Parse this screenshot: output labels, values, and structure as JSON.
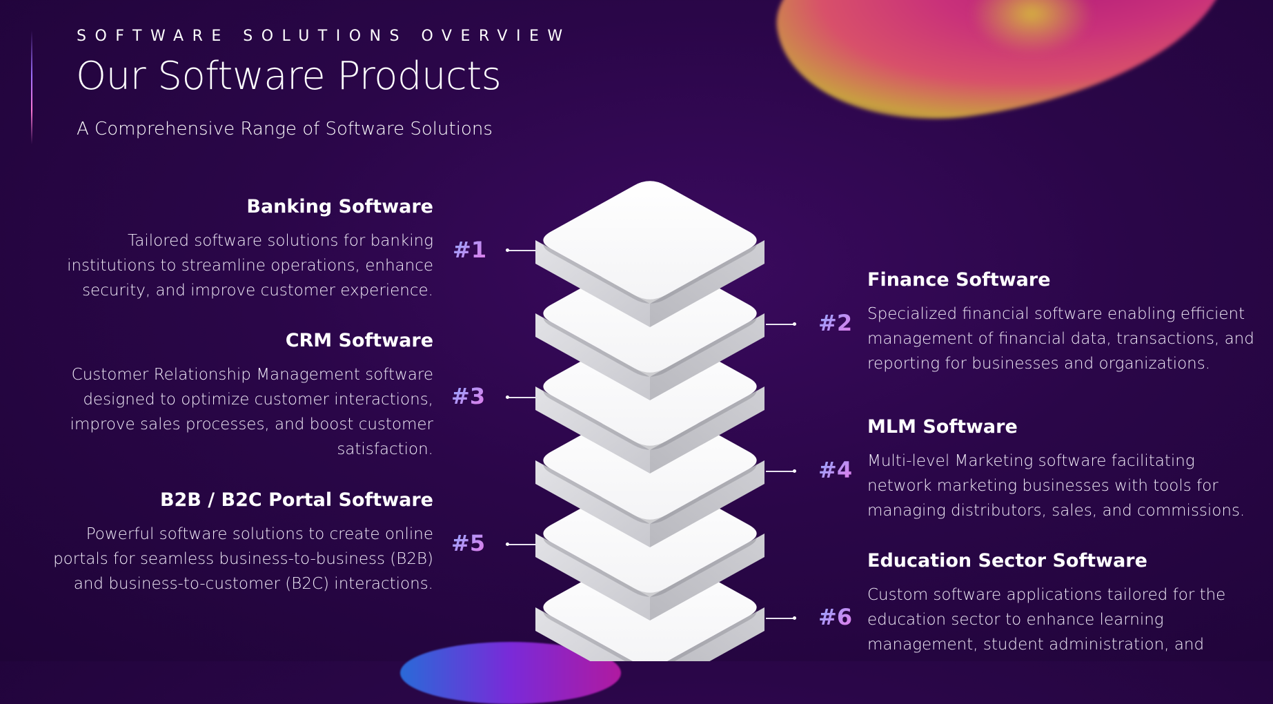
{
  "header": {
    "eyebrow": "SOFTWARE SOLUTIONS OVERVIEW",
    "title": "Our Software Products",
    "subtitle": "A Comprehensive Range of Software Solutions"
  },
  "products": [
    {
      "number": "#1",
      "name": "Banking Software",
      "description": "Tailored software solutions for banking institutions to streamline operations, enhance security, and improve customer experience."
    },
    {
      "number": "#2",
      "name": "Finance Software",
      "description": "Specialized financial software enabling efficient management of financial data, transactions, and reporting for businesses and organizations."
    },
    {
      "number": "#3",
      "name": "CRM Software",
      "description": "Customer Relationship Management software designed to optimize customer interactions, improve sales processes, and boost customer satisfaction."
    },
    {
      "number": "#4",
      "name": "MLM Software",
      "description": "Multi-level Marketing software facilitating network marketing businesses with tools for managing distributors, sales, and commissions."
    },
    {
      "number": "#5",
      "name": "B2B / B2C Portal Software",
      "description": "Powerful software solutions to create online portals for seamless business-to-business (B2B) and business-to-customer (B2C) interactions."
    },
    {
      "number": "#6",
      "name": "Education Sector Software",
      "description": "Custom software applications tailored for the education sector to enhance learning management, student administration, and"
    }
  ],
  "colors": {
    "background": "#2a0648",
    "text": "#ffffff",
    "number_gradient_start": "#8fa8ff",
    "number_gradient_end": "#e47ae8"
  }
}
